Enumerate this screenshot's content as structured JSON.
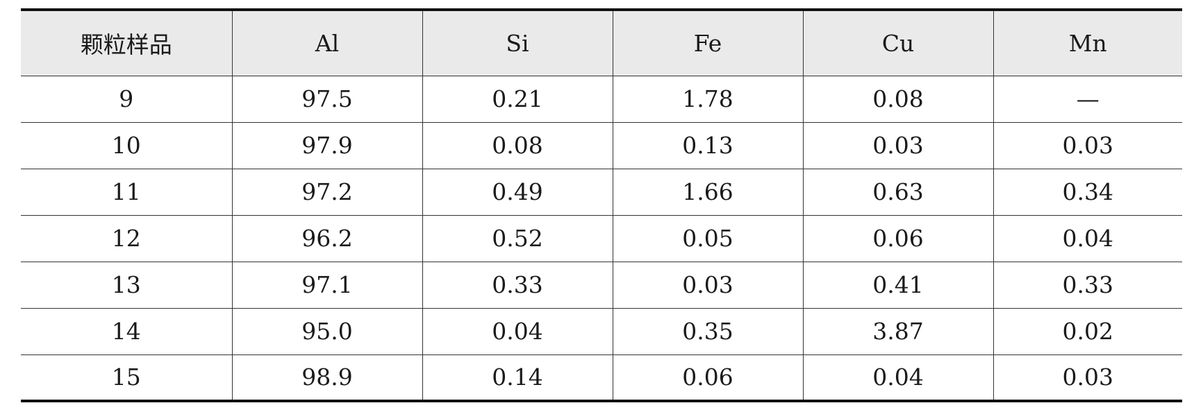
{
  "table": {
    "headers": [
      "颗粒样品",
      "Al",
      "Si",
      "Fe",
      "Cu",
      "Mn"
    ],
    "rows": [
      [
        "9",
        "97.5",
        "0.21",
        "1.78",
        "0.08",
        "—"
      ],
      [
        "10",
        "97.9",
        "0.08",
        "0.13",
        "0.03",
        "0.03"
      ],
      [
        "11",
        "97.2",
        "0.49",
        "1.66",
        "0.63",
        "0.34"
      ],
      [
        "12",
        "96.2",
        "0.52",
        "0.05",
        "0.06",
        "0.04"
      ],
      [
        "13",
        "97.1",
        "0.33",
        "0.03",
        "0.41",
        "0.33"
      ],
      [
        "14",
        "95.0",
        "0.04",
        "0.35",
        "3.87",
        "0.02"
      ],
      [
        "15",
        "98.9",
        "0.14",
        "0.06",
        "0.04",
        "0.03"
      ]
    ]
  }
}
